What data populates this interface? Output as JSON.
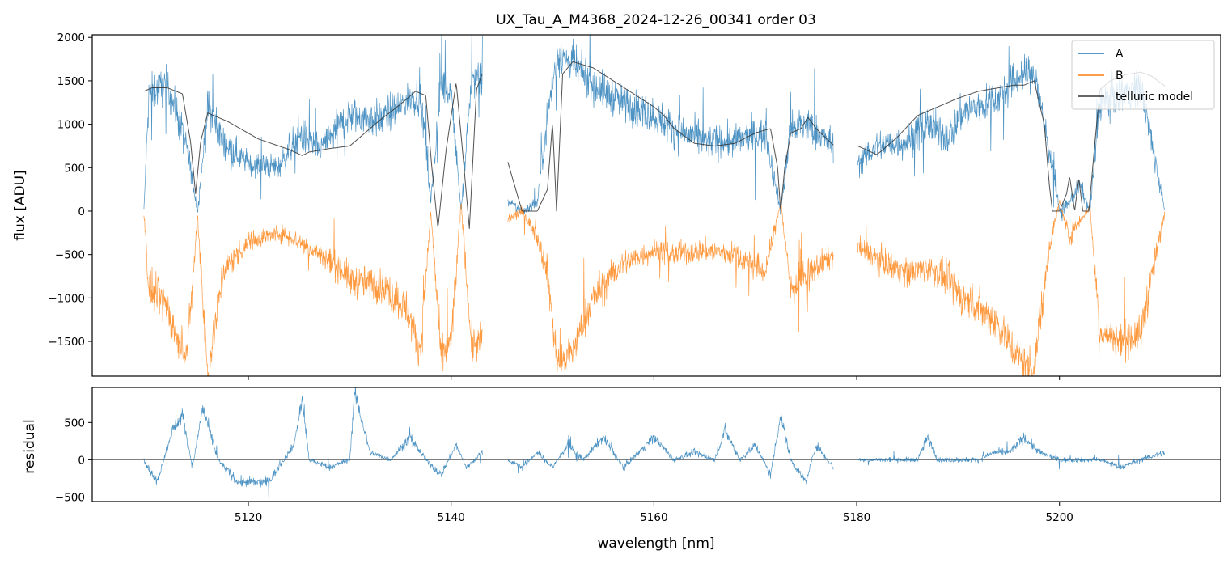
{
  "chart_data": [
    {
      "type": "line",
      "title": "UX_Tau_A_M4368_2024-12-26_00341  order 03",
      "xlabel": "",
      "ylabel": "flux [ADU]",
      "xlim": [
        5104.6,
        5215.9
      ],
      "ylim": [
        -1900,
        2030
      ],
      "yticks": [
        -1500,
        -1000,
        -500,
        0,
        500,
        1000,
        1500,
        2000
      ],
      "yticklabels": [
        "−1500",
        "−1000",
        "−500",
        "0",
        "500",
        "1000",
        "1500",
        "2000"
      ],
      "xticks": [
        5120,
        5140,
        5160,
        5180,
        5200
      ],
      "legend_location": "upper-right",
      "x_segments": [
        [
          5109.7,
          5143.1
        ],
        [
          5145.6,
          5177.7
        ],
        [
          5180.1,
          5210.4
        ]
      ],
      "series": [
        {
          "name": "A",
          "color": "#1f77b4",
          "x": [
            5109.7,
            5110.2,
            5112.0,
            5113.0,
            5114.0,
            5115.0,
            5116.0,
            5117.5,
            5120.0,
            5123.0,
            5125.0,
            5127.0,
            5129.5,
            5130.0,
            5133.0,
            5135.5,
            5137.0,
            5138.0,
            5139.0,
            5140.0,
            5141.0,
            5142.0,
            5143.1,
            5145.6,
            5147.0,
            5148.5,
            5149.5,
            5150.5,
            5152.0,
            5154.0,
            5157.0,
            5160.0,
            5162.0,
            5165.0,
            5168.0,
            5171.0,
            5172.5,
            5173.5,
            5175.0,
            5177.7,
            5180.1,
            5182.0,
            5185.0,
            5187.0,
            5189.0,
            5190.5,
            5192.0,
            5194.0,
            5196.0,
            5197.5,
            5199.0,
            5200.0,
            5201.0,
            5202.0,
            5203.0,
            5204.0,
            5206.0,
            5208.0,
            5210.4
          ],
          "values": [
            0,
            1350,
            1450,
            1100,
            700,
            0,
            1200,
            800,
            550,
            500,
            900,
            700,
            1050,
            1100,
            1050,
            1250,
            1350,
            100,
            1450,
            1400,
            0,
            1500,
            1550,
            100,
            0,
            100,
            1100,
            1800,
            1700,
            1450,
            1250,
            1100,
            950,
            800,
            800,
            900,
            0,
            950,
            1000,
            750,
            550,
            750,
            800,
            1000,
            850,
            1150,
            1200,
            1300,
            1550,
            1600,
            700,
            0,
            100,
            300,
            0,
            1250,
            1350,
            1450,
            0
          ]
        },
        {
          "name": "B",
          "color": "#ff7f0e",
          "x": [
            5109.7,
            5110.2,
            5112.0,
            5113.0,
            5114.0,
            5115.0,
            5116.0,
            5117.5,
            5120.0,
            5123.0,
            5125.0,
            5127.0,
            5129.5,
            5130.0,
            5133.0,
            5135.5,
            5137.0,
            5138.0,
            5139.0,
            5140.0,
            5141.0,
            5142.0,
            5143.1,
            5145.6,
            5147.0,
            5148.5,
            5149.5,
            5150.5,
            5152.0,
            5154.0,
            5157.0,
            5160.0,
            5162.0,
            5165.0,
            5168.0,
            5171.0,
            5172.5,
            5173.5,
            5175.0,
            5177.7,
            5180.1,
            5182.0,
            5185.0,
            5187.0,
            5189.0,
            5190.5,
            5192.0,
            5194.0,
            5196.0,
            5197.5,
            5199.0,
            5200.0,
            5201.0,
            5202.0,
            5203.0,
            5204.0,
            5206.0,
            5208.0,
            5210.4
          ],
          "values": [
            0,
            -900,
            -1100,
            -1500,
            -1600,
            -50,
            -1900,
            -700,
            -350,
            -250,
            -350,
            -500,
            -700,
            -800,
            -850,
            -1100,
            -1600,
            0,
            -1700,
            -1500,
            100,
            -1550,
            -1500,
            -100,
            0,
            -300,
            -700,
            -1800,
            -1600,
            -1000,
            -600,
            -450,
            -500,
            -450,
            -500,
            -700,
            100,
            -900,
            -750,
            -500,
            -400,
            -550,
            -700,
            -650,
            -800,
            -1000,
            -1100,
            -1300,
            -1700,
            -1800,
            -400,
            100,
            -300,
            -100,
            50,
            -1400,
            -1500,
            -1400,
            0
          ]
        },
        {
          "name": "telluric model",
          "color": "#333333",
          "x": [
            5109.7,
            5110.5,
            5112.0,
            5113.5,
            5114.3,
            5114.8,
            5115.3,
            5116.0,
            5118.0,
            5121.0,
            5124.0,
            5125.3,
            5126.0,
            5128.0,
            5130.0,
            5131.0,
            5133.0,
            5135.0,
            5136.5,
            5137.5,
            5138.1,
            5138.7,
            5139.5,
            5140.5,
            5141.2,
            5141.8,
            5142.5,
            5143.1,
            5146.0,
            5147.0,
            5148.5,
            5149.5,
            5150.0,
            5150.4,
            5151.0,
            5152.0,
            5154.0,
            5156.0,
            5158.0,
            5160.0,
            5161.0,
            5162.0,
            5164.0,
            5166.0,
            5168.0,
            5170.0,
            5171.5,
            5172.2,
            5172.5,
            5172.9,
            5173.5,
            5174.5,
            5175.2,
            5176.0,
            5177.7,
            5180.1,
            5182.0,
            5184.0,
            5186.0,
            5188.0,
            5190.0,
            5192.0,
            5194.0,
            5195.5,
            5196.5,
            5197.5,
            5198.5,
            5199.0,
            5199.3,
            5200.0,
            5200.7,
            5201.0,
            5201.5,
            5201.9,
            5202.3,
            5202.9,
            5203.5,
            5204.0,
            5205.0,
            5206.5,
            5208.0,
            5209.0,
            5210.4
          ],
          "values": [
            1380,
            1420,
            1420,
            1350,
            800,
            200,
            800,
            1130,
            1030,
            830,
            710,
            640,
            680,
            720,
            750,
            850,
            1050,
            1230,
            1380,
            1330,
            500,
            -200,
            700,
            1480,
            600,
            -200,
            1400,
            1590,
            400,
            0,
            0,
            250,
            1020,
            0,
            1580,
            1720,
            1650,
            1500,
            1350,
            1200,
            1100,
            950,
            780,
            750,
            780,
            900,
            950,
            500,
            0,
            500,
            900,
            950,
            1080,
            950,
            760,
            750,
            650,
            850,
            1100,
            1200,
            1300,
            1380,
            1420,
            1450,
            1450,
            1500,
            1000,
            300,
            0,
            0,
            200,
            400,
            0,
            380,
            0,
            0,
            800,
            1400,
            1500,
            1570,
            1600,
            1560,
            1440
          ]
        }
      ]
    },
    {
      "type": "line",
      "title": "",
      "xlabel": "wavelength [nm]",
      "ylabel": "residual",
      "xlim": [
        5104.6,
        5215.9
      ],
      "ylim": [
        -560,
        970
      ],
      "yticks": [
        -500,
        0,
        500
      ],
      "yticklabels": [
        "−500",
        "0",
        "500"
      ],
      "xticks": [
        5120,
        5140,
        5160,
        5180,
        5200
      ],
      "xticklabels": [
        "5120",
        "5140",
        "5160",
        "5180",
        "5200"
      ],
      "reference_line": 0,
      "series": [
        {
          "color": "#1f77b4",
          "x": [
            5109.7,
            5111.0,
            5112.5,
            5113.5,
            5114.5,
            5115.5,
            5117.0,
            5119.0,
            5122.0,
            5124.5,
            5125.3,
            5126.0,
            5128.0,
            5130.0,
            5130.5,
            5132.0,
            5134.0,
            5136.0,
            5137.5,
            5139.0,
            5140.5,
            5141.5,
            5143.1,
            5145.6,
            5147.0,
            5148.5,
            5150.0,
            5151.5,
            5153.0,
            5155.0,
            5157.0,
            5158.5,
            5160.0,
            5162.0,
            5164.0,
            5166.0,
            5167.0,
            5168.5,
            5170.0,
            5171.5,
            5172.5,
            5173.5,
            5175.0,
            5176.0,
            5177.7,
            5180.1,
            5182.0,
            5184.0,
            5186.0,
            5187.0,
            5188.0,
            5190.0,
            5192.0,
            5193.5,
            5195.0,
            5196.5,
            5198.0,
            5200.0,
            5202.0,
            5204.0,
            5206.0,
            5208.0,
            5210.4
          ],
          "values": [
            0,
            -300,
            400,
            600,
            -100,
            700,
            0,
            -300,
            -300,
            200,
            800,
            0,
            -100,
            0,
            900,
            100,
            0,
            300,
            0,
            -200,
            200,
            -100,
            100,
            0,
            -100,
            100,
            -100,
            200,
            0,
            300,
            -100,
            100,
            300,
            0,
            100,
            0,
            400,
            0,
            200,
            -200,
            600,
            0,
            -300,
            200,
            -100,
            0,
            0,
            0,
            0,
            300,
            0,
            0,
            0,
            100,
            100,
            300,
            100,
            0,
            0,
            0,
            -100,
            0,
            100
          ]
        }
      ]
    }
  ]
}
